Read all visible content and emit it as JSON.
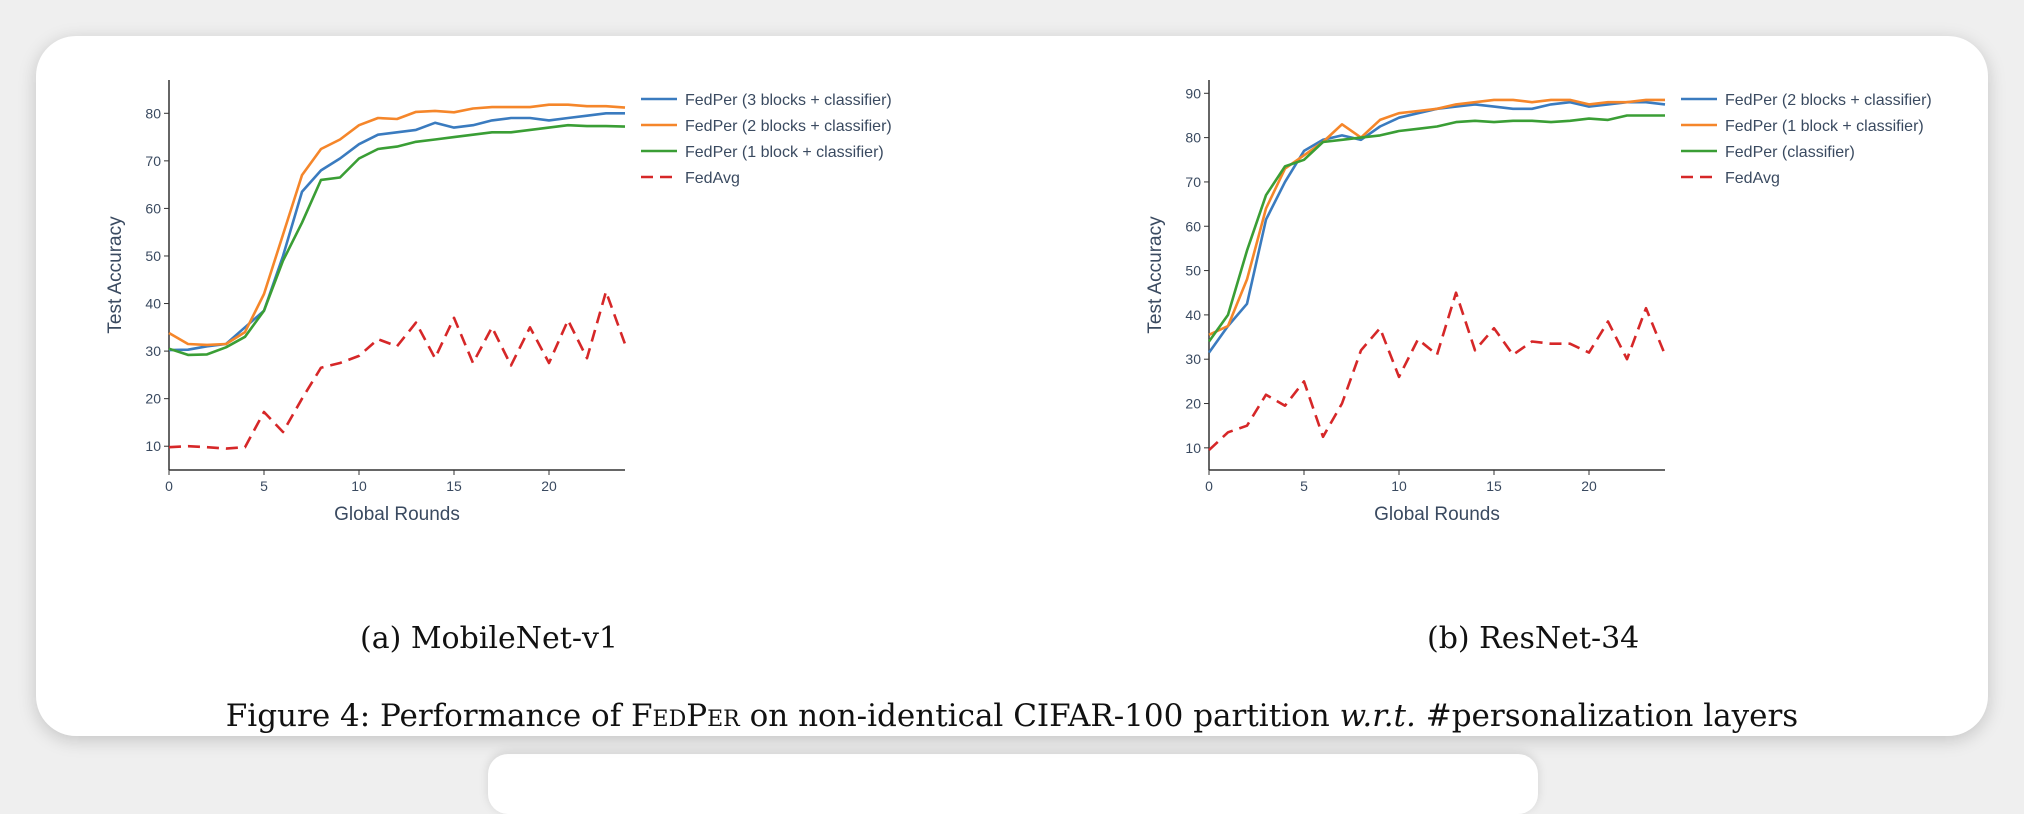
{
  "figure": {
    "caption": {
      "prefix": "Figure 4: Performance of ",
      "method": "FedPer",
      "middle": " on non-identical CIFAR-100 partition ",
      "wrt": "w.r.t.",
      "suffix": " #personalization layers"
    },
    "subcaptions": [
      "(a) MobileNet-v1",
      "(b) ResNet-34"
    ]
  },
  "chart_data": [
    {
      "type": "line",
      "title": "",
      "xlabel": "Global Rounds",
      "ylabel": "Test Accuracy",
      "xlim": [
        0,
        24
      ],
      "ylim": [
        5,
        87
      ],
      "xticks": [
        0,
        5,
        10,
        15,
        20
      ],
      "yticks": [
        10,
        20,
        30,
        40,
        50,
        60,
        70,
        80
      ],
      "grid": false,
      "legend": "outside-right-top",
      "x": [
        0,
        1,
        2,
        3,
        4,
        5,
        6,
        7,
        8,
        9,
        10,
        11,
        12,
        13,
        14,
        15,
        16,
        17,
        18,
        19,
        20,
        21,
        22,
        23,
        24
      ],
      "series": [
        {
          "name": "FedPer (3 blocks + classifier)",
          "color": "#3a7bbf",
          "dash": "solid",
          "values": [
            30.2,
            30.3,
            31.0,
            31.5,
            35.0,
            38.5,
            50.0,
            63.5,
            68.0,
            70.5,
            73.5,
            75.5,
            76.0,
            76.5,
            78.0,
            77.0,
            77.5,
            78.5,
            79.0,
            79.0,
            78.5,
            79.0,
            79.5,
            80.0,
            80.0
          ]
        },
        {
          "name": "FedPer (2 blocks + classifier)",
          "color": "#f5862a",
          "dash": "solid",
          "values": [
            33.8,
            31.5,
            31.3,
            31.5,
            34.0,
            42.0,
            54.5,
            67.0,
            72.5,
            74.5,
            77.5,
            79.0,
            78.8,
            80.3,
            80.5,
            80.2,
            81.0,
            81.3,
            81.3,
            81.3,
            81.8,
            81.8,
            81.5,
            81.5,
            81.2
          ]
        },
        {
          "name": "FedPer (1 block + classifier)",
          "color": "#3a9e35",
          "dash": "solid",
          "values": [
            30.5,
            29.2,
            29.3,
            30.8,
            33.0,
            38.5,
            49.0,
            57.0,
            66.0,
            66.5,
            70.5,
            72.5,
            73.0,
            74.0,
            74.5,
            75.0,
            75.5,
            76.0,
            76.0,
            76.5,
            77.0,
            77.5,
            77.3,
            77.3,
            77.2
          ]
        },
        {
          "name": "FedAvg",
          "color": "#d62728",
          "dash": "dashed",
          "values": [
            9.8,
            10.0,
            9.8,
            9.5,
            9.8,
            17.2,
            13.0,
            20.0,
            26.5,
            27.5,
            29.0,
            32.5,
            31.0,
            36.0,
            28.5,
            37.0,
            27.5,
            35.0,
            27.0,
            35.0,
            27.5,
            36.5,
            28.5,
            42.5,
            31.5
          ]
        }
      ]
    },
    {
      "type": "line",
      "title": "",
      "xlabel": "Global Rounds",
      "ylabel": "Test Accuracy",
      "xlim": [
        0,
        24
      ],
      "ylim": [
        5,
        93
      ],
      "xticks": [
        0,
        5,
        10,
        15,
        20
      ],
      "yticks": [
        10,
        20,
        30,
        40,
        50,
        60,
        70,
        80,
        90
      ],
      "grid": false,
      "legend": "outside-right-top",
      "x": [
        0,
        1,
        2,
        3,
        4,
        5,
        6,
        7,
        8,
        9,
        10,
        11,
        12,
        13,
        14,
        15,
        16,
        17,
        18,
        19,
        20,
        21,
        22,
        23,
        24
      ],
      "series": [
        {
          "name": "FedPer (2 blocks + classifier)",
          "color": "#3a7bbf",
          "dash": "solid",
          "values": [
            31.5,
            37.5,
            42.5,
            61.5,
            70.0,
            77.0,
            79.5,
            80.5,
            79.5,
            82.5,
            84.5,
            85.5,
            86.5,
            87.0,
            87.5,
            87.0,
            86.5,
            86.5,
            87.5,
            88.0,
            87.0,
            87.5,
            88.0,
            88.0,
            87.5
          ]
        },
        {
          "name": "FedPer (1 block + classifier)",
          "color": "#f5862a",
          "dash": "solid",
          "values": [
            35.5,
            37.5,
            48.0,
            64.0,
            73.0,
            76.0,
            79.0,
            83.0,
            80.0,
            84.0,
            85.5,
            86.0,
            86.5,
            87.5,
            88.0,
            88.5,
            88.5,
            88.0,
            88.5,
            88.5,
            87.5,
            88.0,
            88.0,
            88.5,
            88.5
          ]
        },
        {
          "name": "FedPer (classifier)",
          "color": "#3a9e35",
          "dash": "solid",
          "values": [
            34.0,
            40.0,
            54.5,
            67.0,
            73.5,
            75.0,
            79.0,
            79.5,
            80.0,
            80.5,
            81.5,
            82.0,
            82.5,
            83.5,
            83.8,
            83.5,
            83.8,
            83.8,
            83.5,
            83.8,
            84.3,
            84.0,
            85.0,
            85.0,
            85.0
          ]
        },
        {
          "name": "FedAvg",
          "color": "#d62728",
          "dash": "dashed",
          "values": [
            9.5,
            13.5,
            15.0,
            22.0,
            19.5,
            25.0,
            12.5,
            20.0,
            32.0,
            37.0,
            26.0,
            34.5,
            31.0,
            45.0,
            32.0,
            37.0,
            31.0,
            34.0,
            33.5,
            33.5,
            31.5,
            38.5,
            30.0,
            41.5,
            31.0
          ]
        }
      ]
    }
  ]
}
